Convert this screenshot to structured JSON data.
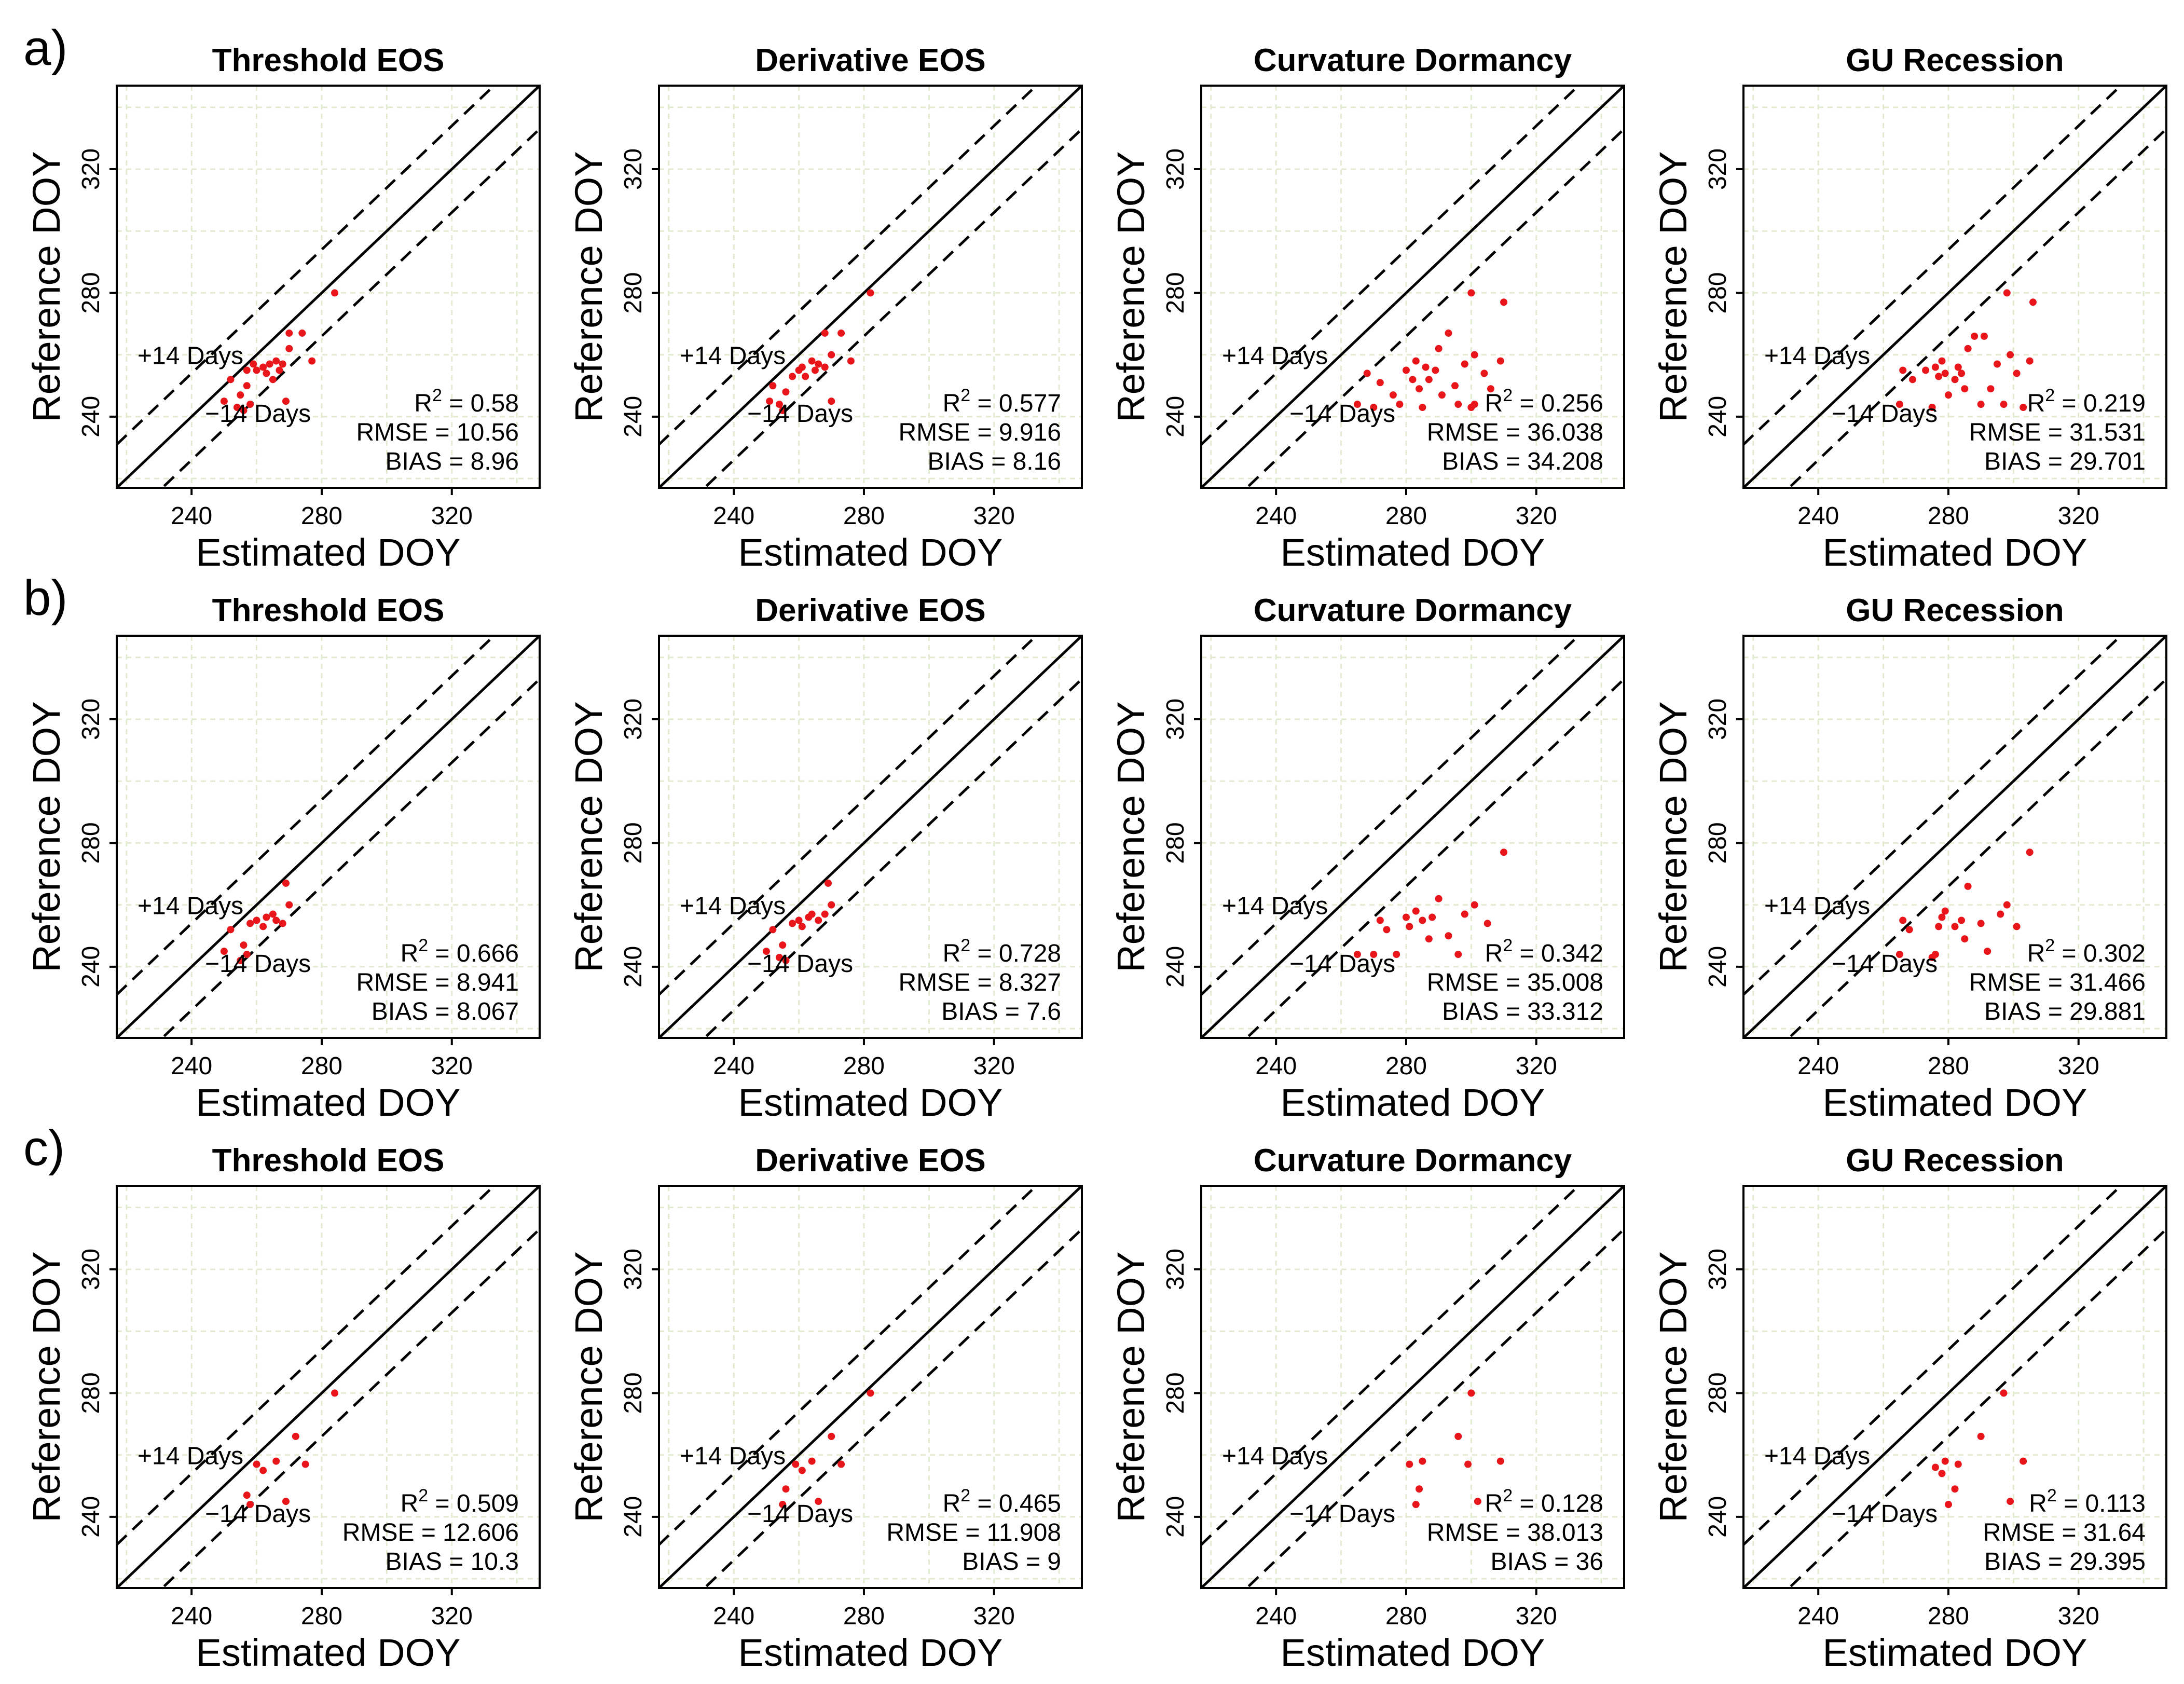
{
  "figure": {
    "row_labels": [
      "a)",
      "b)",
      "c)"
    ],
    "band_labels": {
      "plus": "+14 Days",
      "minus": "−14 Days"
    },
    "point_color": "#e8151b",
    "line_color": "#000000",
    "grid_color": "#e2ebcf",
    "stat_prefixes": {
      "r2_base": "R",
      "r2_exp": "2",
      "r2_eq": " = ",
      "rmse": "RMSE = ",
      "bias": "BIAS = "
    }
  },
  "chart_data": [
    {
      "row": "a)",
      "type": "scatter",
      "title": "Threshold EOS",
      "xlabel": "Estimated DOY",
      "ylabel": "Reference DOY",
      "xlim": [
        217,
        347
      ],
      "ylim": [
        217,
        347
      ],
      "xticks": [
        240,
        280,
        320
      ],
      "yticks": [
        240,
        280,
        320
      ],
      "grid": true,
      "stats": {
        "r2": "0.58",
        "rmse": "10.56",
        "bias": "8.96"
      },
      "points": [
        [
          250,
          245
        ],
        [
          252,
          252
        ],
        [
          254,
          243
        ],
        [
          255,
          247
        ],
        [
          256,
          242
        ],
        [
          257,
          250
        ],
        [
          257,
          255
        ],
        [
          258,
          244
        ],
        [
          259,
          257
        ],
        [
          260,
          255
        ],
        [
          262,
          256
        ],
        [
          263,
          254
        ],
        [
          264,
          257
        ],
        [
          265,
          252
        ],
        [
          266,
          258
        ],
        [
          267,
          255
        ],
        [
          268,
          257
        ],
        [
          269,
          245
        ],
        [
          270,
          267
        ],
        [
          270,
          262
        ],
        [
          274,
          267
        ],
        [
          277,
          258
        ],
        [
          284,
          280
        ]
      ]
    },
    {
      "row": "a)",
      "type": "scatter",
      "title": "Derivative EOS",
      "xlabel": "Estimated DOY",
      "ylabel": "Reference DOY",
      "xlim": [
        217,
        347
      ],
      "ylim": [
        217,
        347
      ],
      "xticks": [
        240,
        280,
        320
      ],
      "yticks": [
        240,
        280,
        320
      ],
      "grid": true,
      "stats": {
        "r2": "0.577",
        "rmse": "9.916",
        "bias": "8.16"
      },
      "points": [
        [
          251,
          245
        ],
        [
          252,
          250
        ],
        [
          254,
          244
        ],
        [
          255,
          242
        ],
        [
          256,
          248
        ],
        [
          258,
          253
        ],
        [
          260,
          255
        ],
        [
          261,
          256
        ],
        [
          262,
          253
        ],
        [
          264,
          258
        ],
        [
          265,
          255
        ],
        [
          266,
          257
        ],
        [
          268,
          256
        ],
        [
          268,
          267
        ],
        [
          270,
          260
        ],
        [
          270,
          245
        ],
        [
          273,
          267
        ],
        [
          276,
          258
        ],
        [
          282,
          280
        ]
      ]
    },
    {
      "row": "a)",
      "type": "scatter",
      "title": "Curvature Dormancy",
      "xlabel": "Estimated DOY",
      "ylabel": "Reference DOY",
      "xlim": [
        217,
        347
      ],
      "ylim": [
        217,
        347
      ],
      "xticks": [
        240,
        280,
        320
      ],
      "yticks": [
        240,
        280,
        320
      ],
      "grid": true,
      "stats": {
        "r2": "0.256",
        "rmse": "36.038",
        "bias": "34.208"
      },
      "points": [
        [
          265,
          244
        ],
        [
          268,
          254
        ],
        [
          270,
          243
        ],
        [
          272,
          251
        ],
        [
          276,
          247
        ],
        [
          278,
          244
        ],
        [
          280,
          255
        ],
        [
          282,
          252
        ],
        [
          283,
          258
        ],
        [
          284,
          249
        ],
        [
          285,
          243
        ],
        [
          286,
          256
        ],
        [
          287,
          252
        ],
        [
          289,
          255
        ],
        [
          290,
          262
        ],
        [
          291,
          247
        ],
        [
          293,
          267
        ],
        [
          295,
          250
        ],
        [
          296,
          244
        ],
        [
          298,
          257
        ],
        [
          300,
          280
        ],
        [
          301,
          260
        ],
        [
          301,
          244
        ],
        [
          304,
          254
        ],
        [
          306,
          249
        ],
        [
          309,
          258
        ],
        [
          310,
          277
        ],
        [
          300,
          243
        ]
      ]
    },
    {
      "row": "a)",
      "type": "scatter",
      "title": "GU Recession",
      "xlabel": "Estimated DOY",
      "ylabel": "Reference DOY",
      "xlim": [
        217,
        347
      ],
      "ylim": [
        217,
        347
      ],
      "xticks": [
        240,
        280,
        320
      ],
      "yticks": [
        240,
        280,
        320
      ],
      "grid": true,
      "stats": {
        "r2": "0.219",
        "rmse": "31.531",
        "bias": "29.701"
      },
      "points": [
        [
          265,
          244
        ],
        [
          266,
          255
        ],
        [
          269,
          252
        ],
        [
          273,
          255
        ],
        [
          275,
          243
        ],
        [
          276,
          256
        ],
        [
          277,
          253
        ],
        [
          278,
          258
        ],
        [
          279,
          254
        ],
        [
          280,
          247
        ],
        [
          282,
          252
        ],
        [
          283,
          256
        ],
        [
          284,
          254
        ],
        [
          285,
          249
        ],
        [
          286,
          262
        ],
        [
          288,
          266
        ],
        [
          290,
          244
        ],
        [
          291,
          266
        ],
        [
          293,
          249
        ],
        [
          295,
          257
        ],
        [
          297,
          244
        ],
        [
          298,
          280
        ],
        [
          299,
          260
        ],
        [
          301,
          254
        ],
        [
          303,
          243
        ],
        [
          305,
          258
        ],
        [
          306,
          277
        ]
      ]
    },
    {
      "row": "b)",
      "type": "scatter",
      "title": "Threshold EOS",
      "xlabel": "Estimated DOY",
      "ylabel": "Reference DOY",
      "xlim": [
        217,
        347
      ],
      "ylim": [
        217,
        347
      ],
      "xticks": [
        240,
        280,
        320
      ],
      "yticks": [
        240,
        280,
        320
      ],
      "grid": true,
      "stats": {
        "r2": "0.666",
        "rmse": "8.941",
        "bias": "8.067"
      },
      "points": [
        [
          250,
          245
        ],
        [
          252,
          252
        ],
        [
          255,
          242
        ],
        [
          256,
          247
        ],
        [
          257,
          244
        ],
        [
          258,
          254
        ],
        [
          260,
          255
        ],
        [
          262,
          253
        ],
        [
          263,
          256
        ],
        [
          265,
          257
        ],
        [
          266,
          255
        ],
        [
          268,
          254
        ],
        [
          269,
          267
        ],
        [
          270,
          260
        ]
      ]
    },
    {
      "row": "b)",
      "type": "scatter",
      "title": "Derivative EOS",
      "xlabel": "Estimated DOY",
      "ylabel": "Reference DOY",
      "xlim": [
        217,
        347
      ],
      "ylim": [
        217,
        347
      ],
      "xticks": [
        240,
        280,
        320
      ],
      "yticks": [
        240,
        280,
        320
      ],
      "grid": true,
      "stats": {
        "r2": "0.728",
        "rmse": "8.327",
        "bias": "7.6"
      },
      "points": [
        [
          250,
          245
        ],
        [
          252,
          252
        ],
        [
          254,
          243
        ],
        [
          255,
          247
        ],
        [
          256,
          242
        ],
        [
          258,
          254
        ],
        [
          260,
          255
        ],
        [
          261,
          253
        ],
        [
          263,
          256
        ],
        [
          264,
          257
        ],
        [
          266,
          255
        ],
        [
          268,
          257
        ],
        [
          269,
          267
        ],
        [
          270,
          260
        ]
      ]
    },
    {
      "row": "b)",
      "type": "scatter",
      "title": "Curvature Dormancy",
      "xlabel": "Estimated DOY",
      "ylabel": "Reference DOY",
      "xlim": [
        217,
        347
      ],
      "ylim": [
        217,
        347
      ],
      "xticks": [
        240,
        280,
        320
      ],
      "yticks": [
        240,
        280,
        320
      ],
      "grid": true,
      "stats": {
        "r2": "0.342",
        "rmse": "35.008",
        "bias": "33.312"
      },
      "points": [
        [
          265,
          244
        ],
        [
          270,
          244
        ],
        [
          272,
          255
        ],
        [
          274,
          252
        ],
        [
          277,
          244
        ],
        [
          280,
          256
        ],
        [
          281,
          253
        ],
        [
          283,
          258
        ],
        [
          285,
          255
        ],
        [
          287,
          249
        ],
        [
          288,
          256
        ],
        [
          290,
          262
        ],
        [
          293,
          250
        ],
        [
          296,
          244
        ],
        [
          298,
          257
        ],
        [
          301,
          260
        ],
        [
          305,
          254
        ],
        [
          310,
          277
        ]
      ]
    },
    {
      "row": "b)",
      "type": "scatter",
      "title": "GU Recession",
      "xlabel": "Estimated DOY",
      "ylabel": "Reference DOY",
      "xlim": [
        217,
        347
      ],
      "ylim": [
        217,
        347
      ],
      "xticks": [
        240,
        280,
        320
      ],
      "yticks": [
        240,
        280,
        320
      ],
      "grid": true,
      "stats": {
        "r2": "0.302",
        "rmse": "31.466",
        "bias": "29.881"
      },
      "points": [
        [
          265,
          244
        ],
        [
          266,
          255
        ],
        [
          268,
          252
        ],
        [
          275,
          243
        ],
        [
          276,
          244
        ],
        [
          277,
          253
        ],
        [
          278,
          256
        ],
        [
          279,
          258
        ],
        [
          282,
          253
        ],
        [
          284,
          255
        ],
        [
          285,
          249
        ],
        [
          286,
          266
        ],
        [
          290,
          254
        ],
        [
          292,
          245
        ],
        [
          296,
          257
        ],
        [
          298,
          260
        ],
        [
          301,
          253
        ],
        [
          305,
          277
        ]
      ]
    },
    {
      "row": "c)",
      "type": "scatter",
      "title": "Threshold EOS",
      "xlabel": "Estimated DOY",
      "ylabel": "Reference DOY",
      "xlim": [
        217,
        347
      ],
      "ylim": [
        217,
        347
      ],
      "xticks": [
        240,
        280,
        320
      ],
      "yticks": [
        240,
        280,
        320
      ],
      "grid": true,
      "stats": {
        "r2": "0.509",
        "rmse": "12.606",
        "bias": "10.3"
      },
      "points": [
        [
          257,
          247
        ],
        [
          258,
          244
        ],
        [
          260,
          257
        ],
        [
          262,
          255
        ],
        [
          266,
          258
        ],
        [
          269,
          245
        ],
        [
          272,
          266
        ],
        [
          275,
          257
        ],
        [
          284,
          280
        ]
      ]
    },
    {
      "row": "c)",
      "type": "scatter",
      "title": "Derivative EOS",
      "xlabel": "Estimated DOY",
      "ylabel": "Reference DOY",
      "xlim": [
        217,
        347
      ],
      "ylim": [
        217,
        347
      ],
      "xticks": [
        240,
        280,
        320
      ],
      "yticks": [
        240,
        280,
        320
      ],
      "grid": true,
      "stats": {
        "r2": "0.465",
        "rmse": "11.908",
        "bias": "9"
      },
      "points": [
        [
          255,
          244
        ],
        [
          256,
          249
        ],
        [
          259,
          257
        ],
        [
          261,
          255
        ],
        [
          264,
          258
        ],
        [
          266,
          245
        ],
        [
          270,
          266
        ],
        [
          273,
          257
        ],
        [
          282,
          280
        ]
      ]
    },
    {
      "row": "c)",
      "type": "scatter",
      "title": "Curvature Dormancy",
      "xlabel": "Estimated DOY",
      "ylabel": "Reference DOY",
      "xlim": [
        217,
        347
      ],
      "ylim": [
        217,
        347
      ],
      "xticks": [
        240,
        280,
        320
      ],
      "yticks": [
        240,
        280,
        320
      ],
      "grid": true,
      "stats": {
        "r2": "0.128",
        "rmse": "38.013",
        "bias": "36"
      },
      "points": [
        [
          281,
          257
        ],
        [
          283,
          244
        ],
        [
          284,
          249
        ],
        [
          285,
          258
        ],
        [
          296,
          266
        ],
        [
          299,
          257
        ],
        [
          300,
          280
        ],
        [
          302,
          245
        ],
        [
          309,
          258
        ]
      ]
    },
    {
      "row": "c)",
      "type": "scatter",
      "title": "GU Recession",
      "xlabel": "Estimated DOY",
      "ylabel": "Reference DOY",
      "xlim": [
        217,
        347
      ],
      "ylim": [
        217,
        347
      ],
      "xticks": [
        240,
        280,
        320
      ],
      "yticks": [
        240,
        280,
        320
      ],
      "grid": true,
      "stats": {
        "r2": "0.113",
        "rmse": "31.64",
        "bias": "29.395"
      },
      "points": [
        [
          276,
          256
        ],
        [
          278,
          254
        ],
        [
          279,
          258
        ],
        [
          280,
          244
        ],
        [
          282,
          249
        ],
        [
          283,
          257
        ],
        [
          290,
          266
        ],
        [
          297,
          280
        ],
        [
          299,
          245
        ],
        [
          303,
          258
        ]
      ]
    }
  ]
}
